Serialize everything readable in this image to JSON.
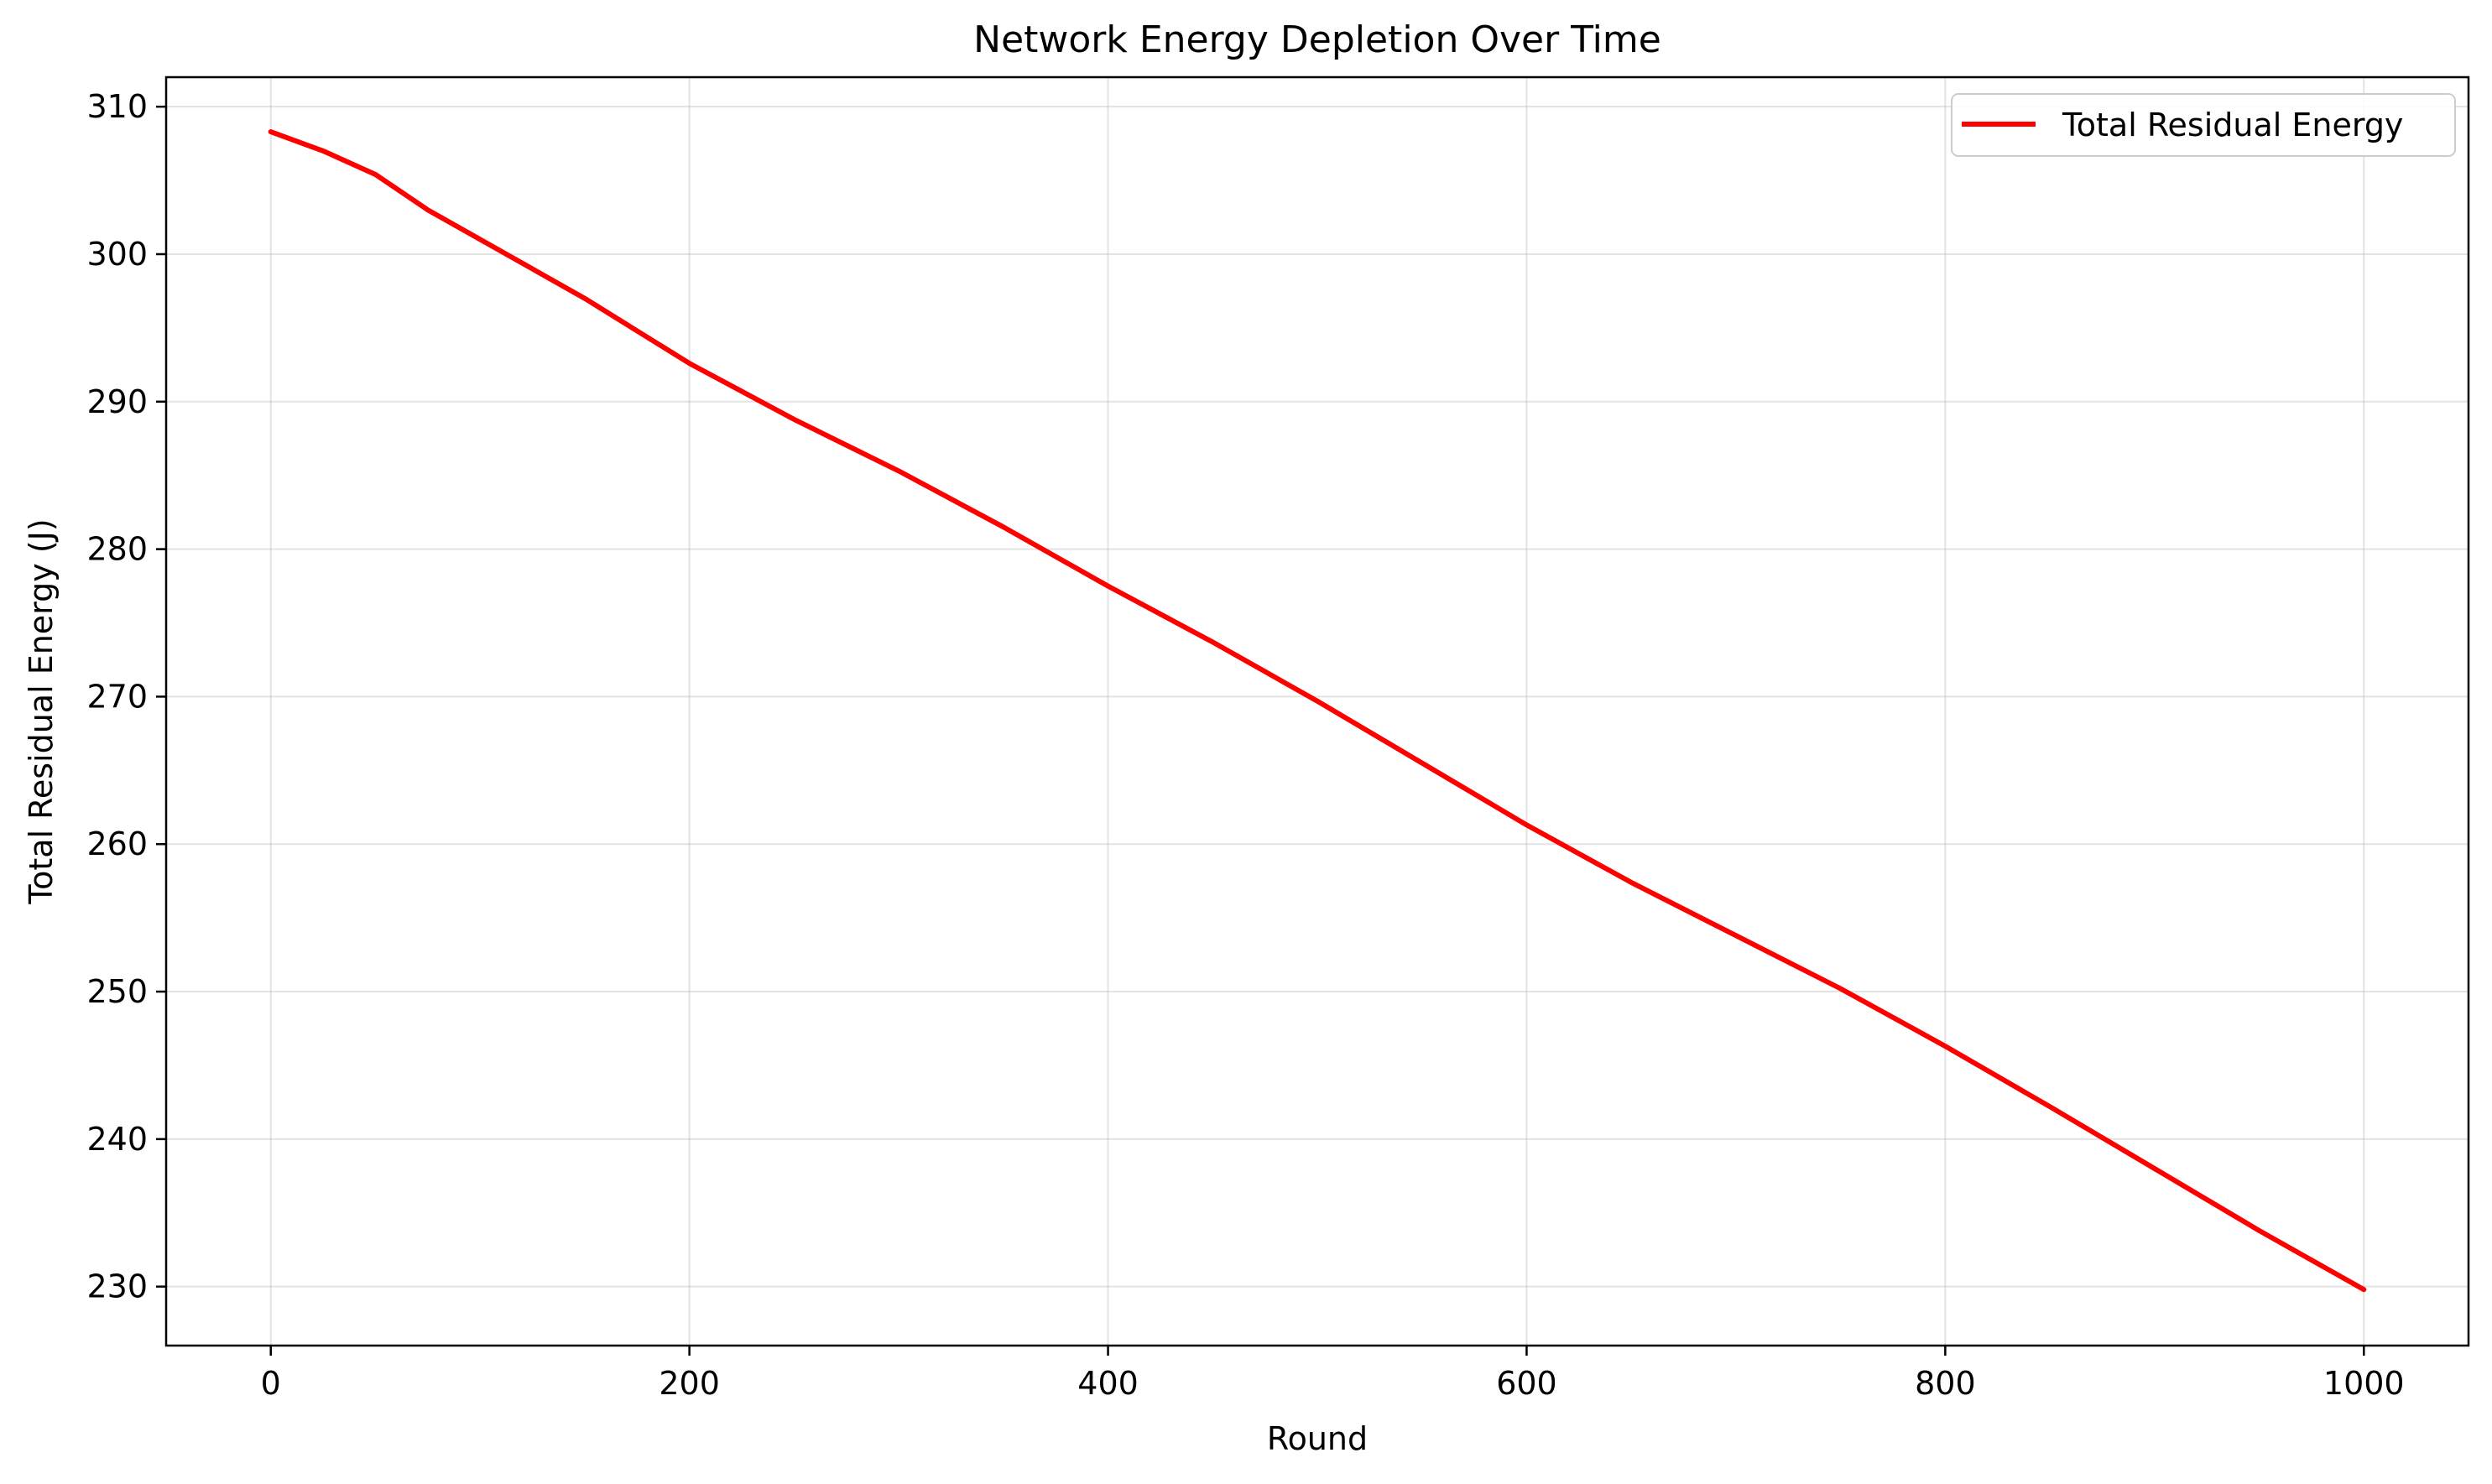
{
  "chart_data": {
    "type": "line",
    "title": "Network Energy Depletion Over Time",
    "xlabel": "Round",
    "ylabel": "Total Residual Energy (J)",
    "xlim": [
      -50,
      1050
    ],
    "ylim": [
      226,
      312
    ],
    "xticks": [
      0,
      200,
      400,
      600,
      800,
      1000
    ],
    "yticks": [
      230,
      240,
      250,
      260,
      270,
      280,
      290,
      300,
      310
    ],
    "grid": true,
    "legend_position": "top-right",
    "series": [
      {
        "name": "Total Residual Energy",
        "color": "#ff0000",
        "x": [
          0,
          25,
          50,
          75,
          100,
          150,
          200,
          250,
          300,
          350,
          400,
          450,
          500,
          550,
          600,
          650,
          700,
          750,
          800,
          850,
          900,
          950,
          1000
        ],
        "y": [
          308.3,
          307.0,
          305.4,
          303.0,
          301.0,
          297.0,
          292.6,
          288.8,
          285.3,
          281.5,
          277.5,
          273.7,
          269.7,
          265.5,
          261.3,
          257.4,
          253.8,
          250.2,
          246.3,
          242.2,
          238.0,
          233.8,
          229.8
        ]
      }
    ]
  }
}
